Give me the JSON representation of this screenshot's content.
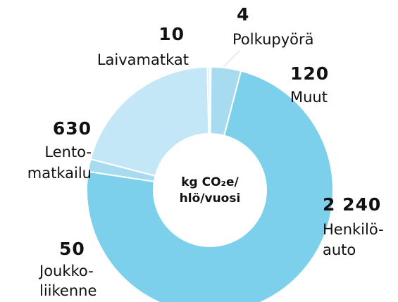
{
  "chart_data": {
    "type": "donut",
    "center_label": [
      "kg CO₂e/",
      "hlö/vuosi"
    ],
    "categories": [
      [
        "Polkupyörä"
      ],
      [
        "Muut"
      ],
      [
        "Henkilö-",
        "auto"
      ],
      [
        "Joukko-",
        "liikenne"
      ],
      [
        "Lento-",
        "matkailu"
      ],
      [
        "Laivamatkat"
      ]
    ],
    "values": [
      4,
      120,
      2240,
      50,
      630,
      10
    ],
    "value_labels": [
      "4",
      "120",
      "2 240",
      "50",
      "630",
      "10"
    ],
    "colors": [
      "#1f3f8a",
      "#a6dbf0",
      "#7dd0ec",
      "#a6dbf0",
      "#c3e7f6",
      "#d8f0f9"
    ]
  }
}
